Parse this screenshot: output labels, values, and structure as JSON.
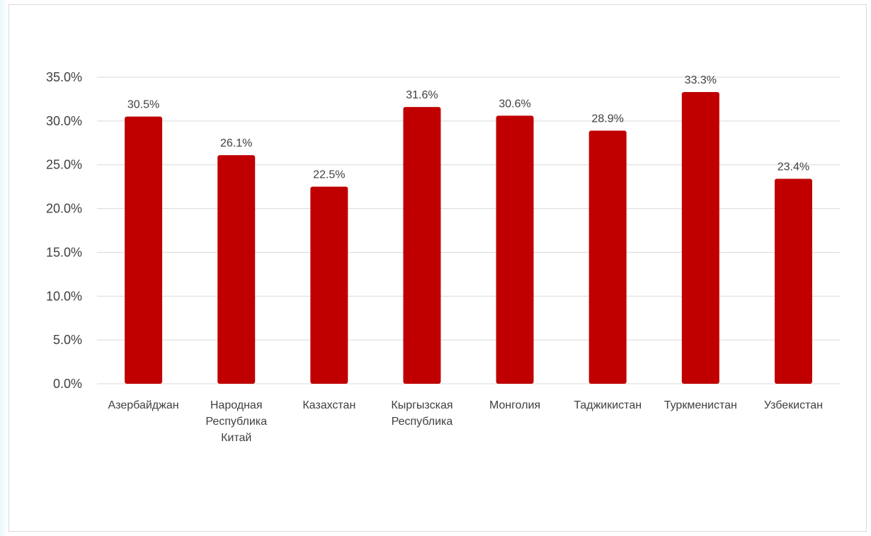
{
  "chart_data": {
    "type": "bar",
    "categories": [
      [
        "Азербайджан"
      ],
      [
        "Народная",
        "Республика",
        "Китай"
      ],
      [
        "Казахстан"
      ],
      [
        "Кыргызская",
        "Республика"
      ],
      [
        "Монголия"
      ],
      [
        "Таджикистан"
      ],
      [
        "Туркменистан"
      ],
      [
        "Узбекистан"
      ]
    ],
    "values": [
      30.5,
      26.1,
      22.5,
      31.6,
      30.6,
      28.9,
      33.3,
      23.4
    ],
    "data_labels": [
      "30.5%",
      "26.1%",
      "22.5%",
      "31.6%",
      "30.6%",
      "28.9%",
      "33.3%",
      "23.4%"
    ],
    "y_ticks": [
      "0.0%",
      "5.0%",
      "10.0%",
      "15.0%",
      "20.0%",
      "25.0%",
      "30.0%",
      "35.0%"
    ],
    "ylim": [
      0,
      35
    ],
    "grid": true,
    "bar_color": "#c00000",
    "grid_color": "#d9d9d9",
    "text_color": "#404040"
  }
}
